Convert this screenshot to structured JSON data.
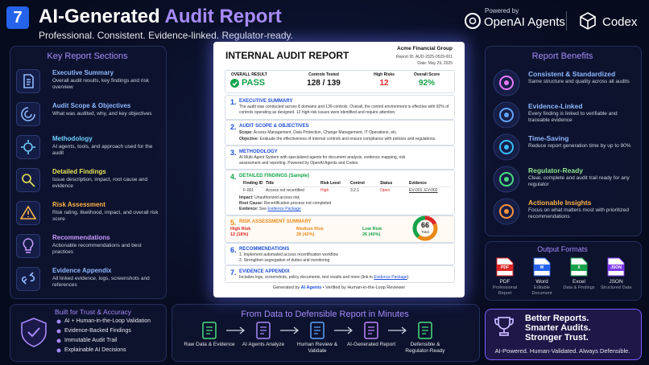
{
  "header": {
    "badge": "7",
    "title": "AI-Generated ",
    "title_highlight": "Audit Report",
    "subtitle": "Professional. Consistent. Evidence-linked. Regulator-ready.",
    "powered_by": "Powered by",
    "brand_primary": "OpenAI Agents",
    "brand_secondary": "Codex"
  },
  "key_sections": {
    "title": "Key Report Sections",
    "items": [
      {
        "title": "Executive Summary",
        "description": "Overall audit results, key findings and risk overview"
      },
      {
        "title": "Audit Scope & Objectives",
        "description": "What was audited, why, and key objectives"
      },
      {
        "title": "Methodology",
        "description": "AI agents, tools, and approach used for the audit"
      },
      {
        "title": "Detailed Findings",
        "description": "Issue description, impact, root cause and evidence"
      },
      {
        "title": "Risk Assessment",
        "description": "Risk rating, likelihood, impact, and overall risk score"
      },
      {
        "title": "Recommendations",
        "description": "Actionable recommendations and best practices"
      },
      {
        "title": "Evidence Appendix",
        "description": "All linked evidence, logs, screenshots and references"
      }
    ]
  },
  "report": {
    "title": "INTERNAL AUDIT REPORT",
    "organization": "Acme Financial Group",
    "report_id": "Report ID: AUD-2025-0529-001",
    "date": "Date: May 29, 2025",
    "summary": {
      "result_label": "OVERALL RESULT",
      "result": "PASS",
      "controls_label": "Controls Tested",
      "controls": "128 / 139",
      "high_risks_label": "High Risks",
      "high_risks": "12",
      "score_label": "Overall Score",
      "score": "92%"
    },
    "sections": [
      {
        "number": "1.",
        "title": "EXECUTIVE SUMMARY",
        "text": "The audit was conducted across 8 domains and 139 controls. Overall, the control environment is effective with 92% of controls operating as designed. 12 high-risk issues were identified and require attention."
      },
      {
        "number": "2.",
        "title": "AUDIT SCOPE & OBJECTIVES",
        "scope_label": "Scope:",
        "scope": " Access Management, Data Protection, Change Management, IT Operations, etc.",
        "objective_label": "Objective:",
        "objective": " Evaluate the effectiveness of internal controls and ensure compliance with policies and regulations."
      },
      {
        "number": "3.",
        "title": "METHODOLOGY",
        "text": "AI Multi-Agent System with specialized agents for document analysis, evidence mapping, risk assessment and reporting. Powered by OpenAI Agents and Codex."
      },
      {
        "number": "4.",
        "title": "DETAILED FINDINGS (Sample)",
        "columns": [
          "Finding ID",
          "Title",
          "Risk Level",
          "Control",
          "Status",
          "Evidence"
        ],
        "rows": [
          [
            "F-001",
            "Access not recertified",
            "High",
            "3.2.1",
            "Open",
            "EV-001, EV-002"
          ]
        ],
        "impact_label": "Impact:",
        "impact": " Unauthorized access risk",
        "root_cause_label": "Root Cause:",
        "root_cause": " Recertification process not completed",
        "evidence_label": "Evidence:",
        "evidence_prefix": " See ",
        "evidence_link": "Evidence Package"
      },
      {
        "number": "5.",
        "title": "RISK ASSESSMENT SUMMARY",
        "levels": [
          {
            "name": "High Risk",
            "value": 12,
            "value_label": "12 (18%)"
          },
          {
            "name": "Medium Risk",
            "value": 28,
            "value_label": "28 (42%)"
          },
          {
            "name": "Low Risk",
            "value": 26,
            "value_label": "26 (40%)"
          }
        ],
        "total": 66,
        "total_label": "Total"
      },
      {
        "number": "6.",
        "title": "RECOMMENDATIONS",
        "items": [
          "1. Implement automated access recertification workflow",
          "2. Strengthen segregation of duties and monitoring"
        ]
      },
      {
        "number": "7.",
        "title": "EVIDENCE APPENDIX",
        "text": "Includes logs, screenshots, policy documents, test results and more (link to ",
        "link": "Evidence Package",
        "text_end": ")."
      }
    ],
    "footer": {
      "prefix": "Generated by ",
      "agent": "AI Agents",
      "suffix": " • Verified by Human-in-the-Loop Reviewer"
    }
  },
  "benefits": {
    "title": "Report Benefits",
    "items": [
      {
        "title": "Consistent & Standardized",
        "description": "Same structure and quality across all audits"
      },
      {
        "title": "Evidence-Linked",
        "description": "Every finding is linked to verifiable and traceable evidence"
      },
      {
        "title": "Time-Saving",
        "description": "Reduce report generation time by up to 90%"
      },
      {
        "title": "Regulator-Ready",
        "description": "Clear, complete and audit trail ready for any regulator"
      },
      {
        "title": "Actionable Insights",
        "description": "Focus on what matters most with prioritized recommendations"
      }
    ]
  },
  "output_formats": {
    "title": "Output Formats",
    "items": [
      {
        "icon": "PDF",
        "name": "PDF",
        "description": "Professional Report"
      },
      {
        "icon": "W",
        "name": "Word",
        "description": "Editable Document"
      },
      {
        "icon": "X",
        "name": "Excel",
        "description": "Data & Findings"
      },
      {
        "icon": "JSON",
        "name": "JSON",
        "description": "Structured Data"
      }
    ]
  },
  "trust": {
    "title": "Built for Trust & Accuracy",
    "items": [
      "AI + Human-in-the-Loop Validation",
      "Evidence-Backed Findings",
      "Immutable Audit Trail",
      "Explainable AI Decisions"
    ]
  },
  "workflow": {
    "title": "From Data to Defensible Report in Minutes",
    "steps": [
      "Raw Data & Evidence",
      "AI Agents Analyze",
      "Human Review & Validate",
      "AI-Generated Report",
      "Defensible & Regulator-Ready"
    ]
  },
  "callout": {
    "lines": [
      "Better Reports.",
      "Smarter Audits.",
      "Stronger Trust."
    ],
    "tagline": "AI-Powered. Human-Validated. Always Defensible."
  }
}
